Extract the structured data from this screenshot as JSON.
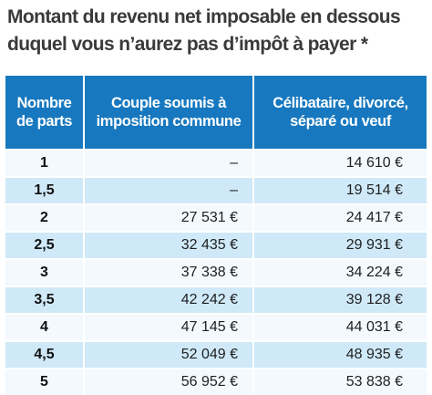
{
  "title": "Montant du revenu net imposable en dessous duquel vous n’aurez pas d’impôt à payer *",
  "table": {
    "headers": [
      "Nombre de parts",
      "Couple soumis à imposition commune",
      "Célibataire, divorcé, séparé ou veuf"
    ],
    "rows": [
      [
        "1",
        "–",
        "14 610 €"
      ],
      [
        "1,5",
        "–",
        "19 514 €"
      ],
      [
        "2",
        "27 531 €",
        "24 417 €"
      ],
      [
        "2,5",
        "32 435 €",
        "29 931 €"
      ],
      [
        "3",
        "37 338 €",
        "34 224 €"
      ],
      [
        "3,5",
        "42 242 €",
        "39 128 €"
      ],
      [
        "4",
        "47 145 €",
        "44 031 €"
      ],
      [
        "4,5",
        "52 049 €",
        "48 935 €"
      ],
      [
        "5",
        "56 952 €",
        "53 838 €"
      ]
    ]
  },
  "colors": {
    "header_bg": "#1778bf",
    "row_light": "#f3f9fd",
    "row_dark": "#cfe9f8",
    "title_text": "#3a3a3a"
  }
}
